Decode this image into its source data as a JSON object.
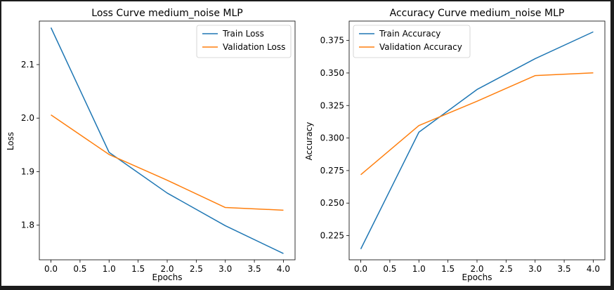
{
  "chart_data": [
    {
      "type": "line",
      "title": "Loss Curve medium_noise MLP",
      "xlabel": "Epochs",
      "ylabel": "Loss",
      "x": [
        0,
        1,
        2,
        3,
        4
      ],
      "xticks": [
        "0.0",
        "0.5",
        "1.0",
        "1.5",
        "2.0",
        "2.5",
        "3.0",
        "3.5",
        "4.0"
      ],
      "yticks": [
        "1.8",
        "1.9",
        "2.0",
        "2.1"
      ],
      "xlim": [
        -0.2,
        4.2
      ],
      "ylim": [
        1.7353,
        2.1813
      ],
      "legend": "top-right",
      "grid": false,
      "series": [
        {
          "name": "Train Loss",
          "color": "#1f77b4",
          "values": [
            2.169,
            1.936,
            1.86,
            1.799,
            1.747
          ]
        },
        {
          "name": "Validation Loss",
          "color": "#ff7f0e",
          "values": [
            2.006,
            1.932,
            1.884,
            1.833,
            1.828
          ]
        }
      ]
    },
    {
      "type": "line",
      "title": "Accuracy Curve medium_noise MLP",
      "xlabel": "Epochs",
      "ylabel": "Accuracy",
      "x": [
        0,
        1,
        2,
        3,
        4
      ],
      "xticks": [
        "0.0",
        "0.5",
        "1.0",
        "1.5",
        "2.0",
        "2.5",
        "3.0",
        "3.5",
        "4.0"
      ],
      "yticks": [
        "0.225",
        "0.250",
        "0.275",
        "0.300",
        "0.325",
        "0.350",
        "0.375"
      ],
      "xlim": [
        -0.2,
        4.2
      ],
      "ylim": [
        0.2064,
        0.3899
      ],
      "legend": "top-left",
      "grid": false,
      "series": [
        {
          "name": "Train Accuracy",
          "color": "#1f77b4",
          "values": [
            0.2147,
            0.3045,
            0.3373,
            0.361,
            0.3816
          ]
        },
        {
          "name": "Validation Accuracy",
          "color": "#ff7f0e",
          "values": [
            0.2718,
            0.3096,
            0.3283,
            0.348,
            0.3501
          ]
        }
      ]
    }
  ]
}
